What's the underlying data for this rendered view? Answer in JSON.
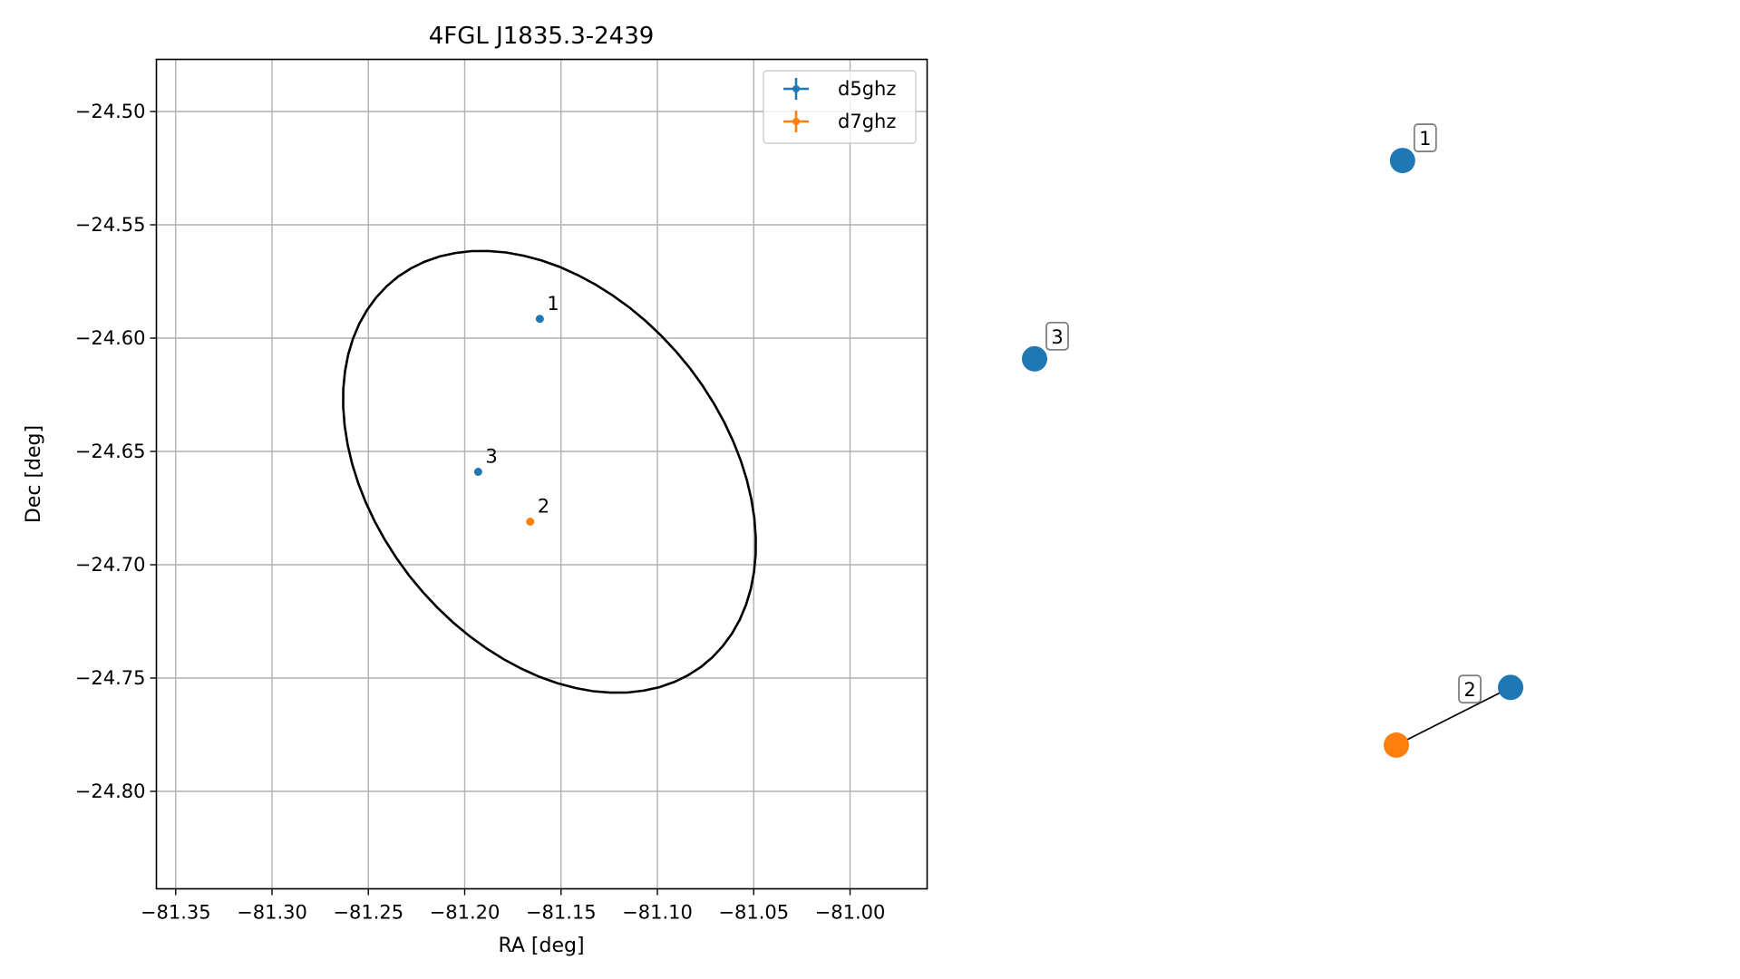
{
  "chart_data": [
    {
      "type": "scatter",
      "title": "4FGL J1835.3-2439",
      "xlabel": "RA [deg]",
      "ylabel": "Dec [deg]",
      "xlim": [
        -81.36,
        -80.96
      ],
      "ylim": [
        -24.843,
        -24.477
      ],
      "x_ticks": [
        -81.35,
        -81.3,
        -81.25,
        -81.2,
        -81.15,
        -81.1,
        -81.05,
        -81.0
      ],
      "x_tick_labels": [
        "−81.35",
        "−81.30",
        "−81.25",
        "−81.20",
        "−81.15",
        "−81.10",
        "−81.05",
        "−81.00"
      ],
      "y_ticks": [
        -24.5,
        -24.55,
        -24.6,
        -24.65,
        -24.7,
        -24.75,
        -24.8
      ],
      "y_tick_labels": [
        "−24.50",
        "−24.55",
        "−24.60",
        "−24.65",
        "−24.70",
        "−24.75",
        "−24.80"
      ],
      "grid": true,
      "legend_position": "top-right",
      "series": [
        {
          "name": "d5ghz",
          "color": "#1f77b4",
          "points": [
            {
              "label": "1",
              "ra": -81.161,
              "dec": -24.5915
            },
            {
              "label": "3",
              "ra": -81.193,
              "dec": -24.659
            }
          ]
        },
        {
          "name": "d7ghz",
          "color": "#ff7f0e",
          "points": [
            {
              "label": "2",
              "ra": -81.166,
              "dec": -24.681
            }
          ]
        }
      ],
      "ellipse": {
        "color": "#000000",
        "center_ra": -81.156,
        "center_dec": -24.659,
        "semi_major_deg": 0.1186,
        "semi_minor_deg": 0.0832,
        "angle_deg": 143
      }
    },
    {
      "type": "network",
      "nodes": [
        {
          "id": "d5-1",
          "label": "1",
          "color": "#1f77b4",
          "x": 0.773,
          "y": 0.902
        },
        {
          "id": "d5-3",
          "label": "3",
          "color": "#1f77b4",
          "x": 0.0,
          "y": 0.596
        },
        {
          "id": "d5-2",
          "label": "",
          "color": "#1f77b4",
          "x": 1.0,
          "y": 0.089
        },
        {
          "id": "d7-2",
          "label": "",
          "color": "#ff7f0e",
          "x": 0.76,
          "y": 0.0
        }
      ],
      "edges": [
        {
          "from": "d5-2",
          "to": "d7-2",
          "label": "2"
        }
      ]
    }
  ]
}
